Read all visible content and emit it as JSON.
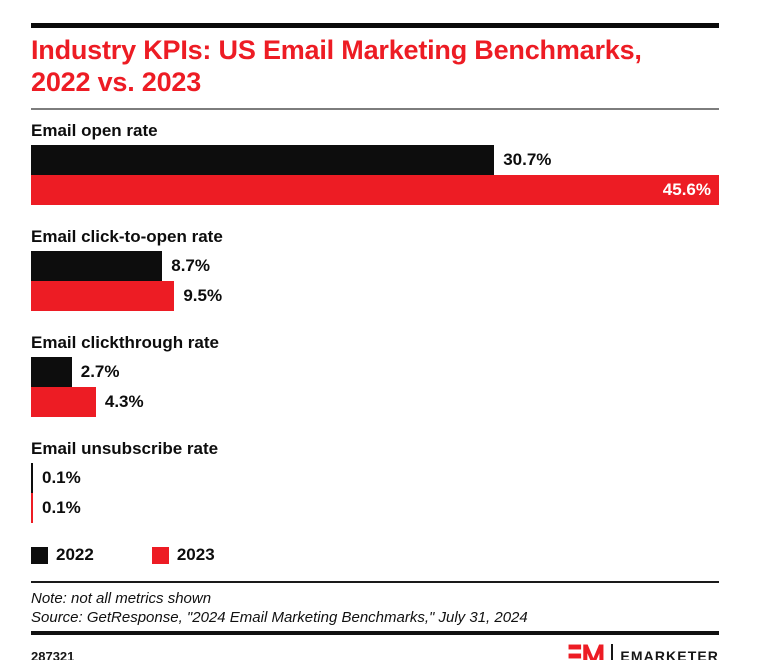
{
  "header": {
    "title_line1": "Industry KPIs: US Email Marketing Benchmarks,",
    "title_line2": "2022 vs. 2023"
  },
  "colors": {
    "accent_red": "#ed1c24",
    "bar_black": "#0d0d0d"
  },
  "chart_data": {
    "type": "bar",
    "orientation": "horizontal",
    "title": "Industry KPIs: US Email Marketing Benchmarks, 2022 vs. 2023",
    "xlabel": "",
    "ylabel": "",
    "xlim": [
      0,
      45.6
    ],
    "grid": false,
    "legend_position": "bottom-left",
    "value_unit": "%",
    "categories": [
      "Email open rate",
      "Email click-to-open rate",
      "Email clickthrough rate",
      "Email unsubscribe rate"
    ],
    "series": [
      {
        "name": "2022",
        "color": "#0d0d0d",
        "values": [
          30.7,
          8.7,
          2.7,
          0.1
        ],
        "labels": [
          "30.7%",
          "8.7%",
          "2.7%",
          "0.1%"
        ]
      },
      {
        "name": "2023",
        "color": "#ed1c24",
        "values": [
          45.6,
          9.5,
          4.3,
          0.1
        ],
        "labels": [
          "45.6%",
          "9.5%",
          "4.3%",
          "0.1%"
        ]
      }
    ]
  },
  "notes": {
    "note": "Note: not all metrics shown",
    "source": "Source: GetResponse, \"2024 Email Marketing Benchmarks,\" July 31, 2024"
  },
  "footer": {
    "chart_id": "287321",
    "brand": "EMARKETER"
  }
}
